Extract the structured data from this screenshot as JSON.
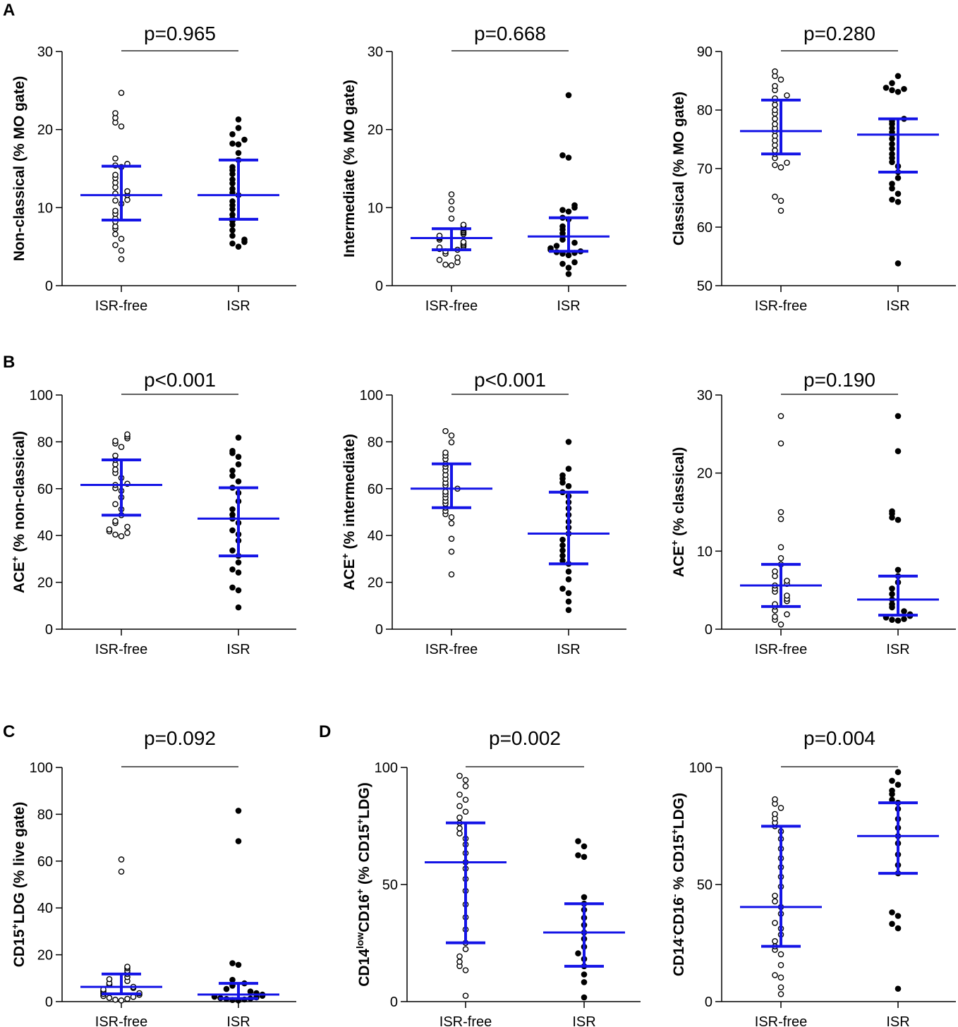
{
  "colors": {
    "summary": "#1414e6",
    "axis": "#000000",
    "open_marker": "#ffffff",
    "filled_marker": "#000000"
  },
  "panel_letters": [
    "A",
    "B",
    "C",
    "D"
  ],
  "chart_data": [
    {
      "type": "scatter",
      "panel": "A",
      "title": "p=0.965",
      "ylabel": "Non-classical (% MO gate)",
      "ylim": [
        0,
        30
      ],
      "yticks": [
        0,
        10,
        20,
        30
      ],
      "categories": [
        "ISR-free",
        "ISR"
      ],
      "series": [
        {
          "name": "ISR-free",
          "marker": "open",
          "median": 11.6,
          "q1": 8.4,
          "q3": 15.3,
          "values": [
            24.7,
            22.1,
            21.5,
            20.9,
            20.4,
            16.3,
            15.6,
            15.4,
            15.2,
            14.2,
            13.8,
            13.2,
            12.6,
            12.1,
            11.8,
            11.6,
            11.0,
            10.9,
            10.5,
            9.6,
            9.2,
            8.6,
            8.2,
            7.6,
            7.3,
            6.6,
            6.0,
            5.2,
            4.5,
            3.4
          ]
        },
        {
          "name": "ISR",
          "marker": "filled",
          "median": 11.6,
          "q1": 8.5,
          "q3": 16.1,
          "values": [
            21.3,
            20.2,
            19.4,
            18.7,
            18.2,
            18.1,
            17.0,
            16.1,
            15.2,
            14.8,
            14.3,
            13.6,
            13.1,
            12.4,
            11.9,
            11.6,
            10.8,
            10.3,
            9.8,
            9.1,
            8.6,
            8.3,
            7.8,
            7.1,
            6.4,
            5.9,
            5.6,
            5.4,
            5.0
          ]
        }
      ]
    },
    {
      "type": "scatter",
      "panel": "A",
      "title": "p=0.668",
      "ylabel": "Intermediate (% MO gate)",
      "ylim": [
        0,
        30
      ],
      "yticks": [
        0,
        10,
        20,
        30
      ],
      "categories": [
        "ISR-free",
        "ISR"
      ],
      "series": [
        {
          "name": "ISR-free",
          "marker": "open",
          "median": 6.1,
          "q1": 4.6,
          "q3": 7.3,
          "values": [
            11.7,
            10.8,
            9.8,
            8.6,
            7.8,
            7.6,
            7.4,
            7.3,
            7.1,
            6.9,
            6.8,
            6.6,
            6.4,
            6.2,
            6.1,
            5.9,
            5.6,
            5.4,
            5.2,
            5.0,
            4.9,
            4.7,
            4.6,
            4.4,
            4.1,
            3.6,
            3.3,
            3.0,
            2.7,
            2.6
          ]
        },
        {
          "name": "ISR",
          "marker": "filled",
          "median": 6.3,
          "q1": 4.4,
          "q3": 8.7,
          "values": [
            24.4,
            16.7,
            16.4,
            10.3,
            10.0,
            9.7,
            9.5,
            8.7,
            8.5,
            7.6,
            7.2,
            6.7,
            6.3,
            5.9,
            5.5,
            5.1,
            4.8,
            4.6,
            4.4,
            4.3,
            4.2,
            4.1,
            3.9,
            3.0,
            2.8,
            2.3,
            1.5
          ]
        }
      ]
    },
    {
      "type": "scatter",
      "panel": "A",
      "title": "p=0.280",
      "ylabel": "Classical (% MO gate)",
      "ylim": [
        50,
        90
      ],
      "yticks": [
        50,
        60,
        70,
        80,
        90
      ],
      "categories": [
        "ISR-free",
        "ISR"
      ],
      "series": [
        {
          "name": "ISR-free",
          "marker": "open",
          "median": 76.4,
          "q1": 72.5,
          "q3": 81.7,
          "values": [
            86.6,
            85.8,
            85.2,
            84.1,
            83.4,
            82.5,
            82.0,
            81.7,
            80.9,
            80.0,
            79.4,
            78.5,
            77.6,
            76.9,
            76.4,
            75.6,
            74.8,
            74.0,
            73.1,
            72.5,
            71.8,
            71.0,
            70.6,
            70.2,
            65.2,
            64.5,
            62.8
          ]
        },
        {
          "name": "ISR",
          "marker": "filled",
          "median": 75.8,
          "q1": 69.4,
          "q3": 78.5,
          "values": [
            85.8,
            84.6,
            83.8,
            83.6,
            83.4,
            83.1,
            78.5,
            78.1,
            77.6,
            76.9,
            76.2,
            75.8,
            75.1,
            74.2,
            73.4,
            72.5,
            71.8,
            71.1,
            70.4,
            69.4,
            68.4,
            67.4,
            66.6,
            65.7,
            64.7,
            64.3,
            53.8
          ]
        }
      ]
    },
    {
      "type": "scatter",
      "panel": "B",
      "title": "p<0.001",
      "ylabel": "ACE+ (% non-classical)",
      "ylim": [
        0,
        100
      ],
      "yticks": [
        0,
        20,
        40,
        60,
        80,
        100
      ],
      "categories": [
        "ISR-free",
        "ISR"
      ],
      "series": [
        {
          "name": "ISR-free",
          "marker": "open",
          "median": 61.6,
          "q1": 48.7,
          "q3": 72.3,
          "values": [
            83.2,
            82.3,
            81.5,
            80.4,
            79.3,
            77.8,
            74.1,
            72.3,
            70.4,
            68.2,
            66.7,
            64.6,
            62.1,
            61.6,
            60.2,
            59.1,
            56.3,
            53.4,
            51.2,
            48.7,
            46.2,
            45.4,
            43.7,
            42.6,
            41.8,
            41.1,
            40.4,
            39.7
          ]
        },
        {
          "name": "ISR",
          "marker": "filled",
          "median": 47.2,
          "q1": 31.3,
          "q3": 60.4,
          "values": [
            81.8,
            76.1,
            75.2,
            73.6,
            70.4,
            67.7,
            65.5,
            63.1,
            60.4,
            58.2,
            54.6,
            51.2,
            48.9,
            47.2,
            45.4,
            42.2,
            40.5,
            37.8,
            33.6,
            31.3,
            28.5,
            25.5,
            24.2,
            17.8,
            16.6,
            9.3
          ]
        }
      ]
    },
    {
      "type": "scatter",
      "panel": "B",
      "title": "p<0.001",
      "ylabel": "ACE+ (% intermediate)",
      "ylim": [
        0,
        100
      ],
      "yticks": [
        0,
        20,
        40,
        60,
        80,
        100
      ],
      "categories": [
        "ISR-free",
        "ISR"
      ],
      "series": [
        {
          "name": "ISR-free",
          "marker": "open",
          "median": 60.0,
          "q1": 51.9,
          "q3": 70.6,
          "values": [
            84.6,
            82.7,
            79.8,
            75.4,
            74.1,
            72.6,
            70.6,
            69.4,
            67.8,
            65.9,
            64.2,
            62.5,
            61.4,
            60.0,
            58.7,
            57.6,
            56.2,
            54.8,
            53.6,
            51.9,
            50.5,
            49.1,
            47.8,
            45.2,
            38.6,
            33.1,
            23.4
          ]
        },
        {
          "name": "ISR",
          "marker": "filled",
          "median": 40.8,
          "q1": 27.9,
          "q3": 58.5,
          "values": [
            80.0,
            68.5,
            65.7,
            64.3,
            62.6,
            61.1,
            58.5,
            56.8,
            54.2,
            51.6,
            48.8,
            45.9,
            43.4,
            40.8,
            38.2,
            35.8,
            33.6,
            31.4,
            29.3,
            27.9,
            24.6,
            21.3,
            17.3,
            15.4,
            11.8,
            8.2
          ]
        }
      ]
    },
    {
      "type": "scatter",
      "panel": "B",
      "title": "p=0.190",
      "ylabel": "ACE+ (% classical)",
      "ylim": [
        0,
        30
      ],
      "yticks": [
        0,
        10,
        20,
        30
      ],
      "categories": [
        "ISR-free",
        "ISR"
      ],
      "series": [
        {
          "name": "ISR-free",
          "marker": "open",
          "median": 5.6,
          "q1": 2.9,
          "q3": 8.3,
          "values": [
            27.3,
            23.8,
            15.0,
            14.1,
            10.5,
            9.1,
            8.3,
            7.4,
            6.8,
            6.2,
            5.8,
            5.6,
            5.2,
            4.8,
            4.3,
            3.9,
            3.6,
            3.2,
            2.9,
            2.4,
            1.9,
            1.6,
            1.2,
            0.6
          ]
        },
        {
          "name": "ISR",
          "marker": "filled",
          "median": 3.8,
          "q1": 1.8,
          "q3": 6.8,
          "values": [
            27.3,
            22.8,
            15.1,
            14.8,
            14.3,
            14.0,
            7.6,
            6.8,
            6.0,
            5.2,
            4.5,
            3.8,
            3.2,
            2.8,
            2.3,
            1.9,
            1.7,
            1.5,
            1.3,
            1.2,
            1.1
          ]
        }
      ]
    },
    {
      "type": "scatter",
      "panel": "C",
      "title": "p=0.092",
      "ylabel": "CD15+LDG (% live gate)",
      "ylim": [
        0,
        100
      ],
      "yticks": [
        0,
        20,
        40,
        60,
        80,
        100
      ],
      "categories": [
        "ISR-free",
        "ISR"
      ],
      "series": [
        {
          "name": "ISR-free",
          "marker": "open",
          "median": 6.3,
          "q1": 3.3,
          "q3": 11.8,
          "values": [
            60.7,
            55.5,
            14.9,
            14.3,
            13.2,
            12.4,
            11.8,
            10.5,
            9.6,
            8.8,
            7.9,
            7.2,
            6.3,
            5.8,
            5.2,
            4.6,
            4.1,
            3.6,
            3.3,
            2.9,
            2.4,
            2.0,
            1.6,
            1.2,
            0.8,
            0.5
          ]
        },
        {
          "name": "ISR",
          "marker": "filled",
          "median": 3.0,
          "q1": 1.3,
          "q3": 7.8,
          "values": [
            81.5,
            68.5,
            16.4,
            15.7,
            9.3,
            7.8,
            6.8,
            5.4,
            4.3,
            3.6,
            3.0,
            2.5,
            2.1,
            1.8,
            1.5,
            1.3,
            1.1,
            0.9,
            0.7,
            0.5
          ]
        }
      ]
    },
    {
      "type": "scatter",
      "panel": "D",
      "title": "p=0.002",
      "ylabel": "CD14lowCD16+ (% CD15+LDG)",
      "ylim": [
        0,
        100
      ],
      "yticks": [
        0,
        50,
        100
      ],
      "categories": [
        "ISR-free",
        "ISR"
      ],
      "series": [
        {
          "name": "ISR-free",
          "marker": "open",
          "median": 59.5,
          "q1": 25.1,
          "q3": 76.3,
          "values": [
            96.4,
            94.6,
            92.0,
            88.4,
            86.2,
            83.5,
            81.1,
            78.6,
            76.3,
            74.0,
            71.8,
            69.6,
            67.1,
            63.4,
            59.5,
            56.8,
            52.4,
            47.3,
            41.5,
            36.0,
            30.8,
            25.1,
            22.4,
            19.3,
            17.0,
            15.2,
            13.4,
            2.5
          ]
        },
        {
          "name": "ISR",
          "marker": "filled",
          "median": 29.5,
          "q1": 15.1,
          "q3": 41.8,
          "values": [
            68.5,
            66.3,
            62.5,
            61.8,
            44.6,
            41.8,
            39.2,
            35.8,
            32.7,
            29.5,
            26.8,
            23.4,
            20.6,
            18.2,
            15.1,
            11.6,
            8.3,
            1.8
          ]
        }
      ]
    },
    {
      "type": "scatter",
      "panel": "D",
      "title": "p=0.004",
      "ylabel": "CD14-CD16- % CD15+LDG)",
      "ylim": [
        0,
        100
      ],
      "yticks": [
        0,
        50,
        100
      ],
      "categories": [
        "ISR-free",
        "ISR"
      ],
      "series": [
        {
          "name": "ISR-free",
          "marker": "open",
          "median": 40.4,
          "q1": 23.6,
          "q3": 74.9,
          "values": [
            86.4,
            84.5,
            82.7,
            80.1,
            78.2,
            76.4,
            74.9,
            72.7,
            69.5,
            65.3,
            61.2,
            57.4,
            53.3,
            49.1,
            45.2,
            42.8,
            40.4,
            37.5,
            33.6,
            31.2,
            28.6,
            25.8,
            23.6,
            22.1,
            20.2,
            15.6,
            11.3,
            10.3,
            6.1,
            3.2
          ]
        },
        {
          "name": "ISR",
          "marker": "filled",
          "median": 70.7,
          "q1": 54.8,
          "q3": 84.9,
          "values": [
            98.0,
            94.3,
            92.6,
            90.1,
            88.6,
            86.2,
            84.9,
            82.3,
            78.0,
            74.2,
            70.7,
            67.6,
            62.8,
            58.3,
            54.8,
            38.1,
            36.6,
            33.2,
            31.3,
            5.5
          ]
        }
      ]
    }
  ]
}
